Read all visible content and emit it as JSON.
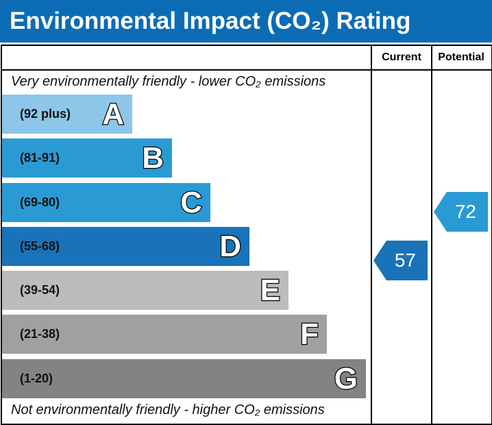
{
  "title": "Environmental Impact (CO₂) Rating",
  "columns": {
    "current": "Current",
    "potential": "Potential"
  },
  "top_note": "Very environmentally friendly - lower CO₂ emissions",
  "bottom_note": "Not environmentally friendly - higher CO₂ emissions",
  "chart_data": {
    "type": "bar",
    "categories": [
      "A",
      "B",
      "C",
      "D",
      "E",
      "F",
      "G"
    ],
    "bands": [
      {
        "letter": "A",
        "range": "(92 plus)",
        "color": "#8dc6e8"
      },
      {
        "letter": "B",
        "range": "(81-91)",
        "color": "#2a9ad5"
      },
      {
        "letter": "C",
        "range": "(69-80)",
        "color": "#2a9ad5"
      },
      {
        "letter": "D",
        "range": "(55-68)",
        "color": "#1a73b8"
      },
      {
        "letter": "E",
        "range": "(39-54)",
        "color": "#bdbcbb"
      },
      {
        "letter": "F",
        "range": "(21-38)",
        "color": "#a0a0a0"
      },
      {
        "letter": "G",
        "range": "(1-20)",
        "color": "#838383"
      }
    ],
    "current": {
      "value": 57,
      "band": "D",
      "color": "#1a73b8"
    },
    "potential": {
      "value": 72,
      "band": "C",
      "color": "#2a9ad5"
    }
  }
}
